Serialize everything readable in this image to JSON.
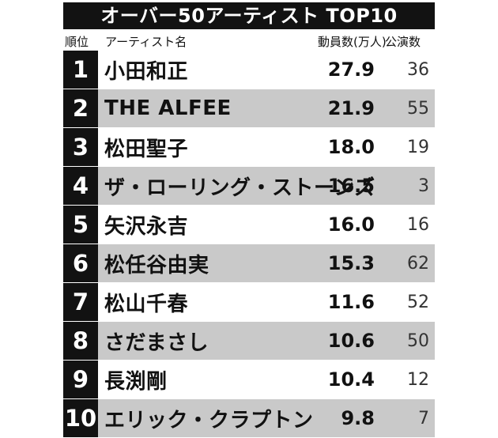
{
  "title": "オーバー50アーティスト TOP10",
  "headers": {
    "rank": "順位",
    "artist": "アーティスト名",
    "mobilization": "動員数(万人)",
    "shows": "公演数"
  },
  "rows": [
    {
      "rank": "1",
      "artist": "小田和正",
      "mobilization": "27.9",
      "shows": "36"
    },
    {
      "rank": "2",
      "artist": "THE ALFEE",
      "mobilization": "21.9",
      "shows": "55"
    },
    {
      "rank": "3",
      "artist": "松田聖子",
      "mobilization": "18.0",
      "shows": "19"
    },
    {
      "rank": "4",
      "artist": "ザ・ローリング・ストーンズ",
      "mobilization": "16.5",
      "shows": "3"
    },
    {
      "rank": "5",
      "artist": "矢沢永吉",
      "mobilization": "16.0",
      "shows": "16"
    },
    {
      "rank": "6",
      "artist": "松任谷由実",
      "mobilization": "15.3",
      "shows": "62"
    },
    {
      "rank": "7",
      "artist": "松山千春",
      "mobilization": "11.6",
      "shows": "52"
    },
    {
      "rank": "8",
      "artist": "さだまさし",
      "mobilization": "10.6",
      "shows": "50"
    },
    {
      "rank": "9",
      "artist": "長渕剛",
      "mobilization": "10.4",
      "shows": "12"
    },
    {
      "rank": "10",
      "artist": "エリック・クラプトン",
      "mobilization": "9.8",
      "shows": "7"
    }
  ],
  "colors": {
    "dark": "#121212",
    "stripe": "#c9c9c9",
    "light": "#ffffff"
  }
}
